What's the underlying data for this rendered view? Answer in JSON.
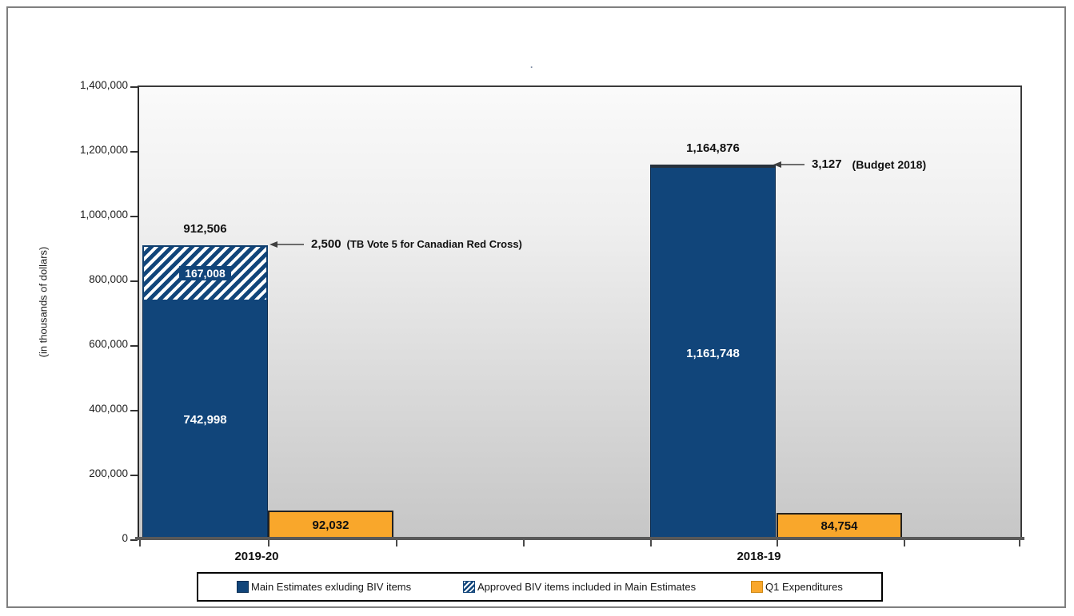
{
  "chart_data": {
    "type": "bar",
    "title": ".",
    "ylabel": "(in thousands of dollars)",
    "ylim": [
      0,
      1400000
    ],
    "y_tick_labels": [
      "1,400,000",
      "1,200,000",
      "1,000,000",
      "800,000",
      "600,000",
      "400,000",
      "200,000",
      "0"
    ],
    "gridlines": "off",
    "legend_position": "bottom",
    "categories": [
      "2019-20",
      "2018-19"
    ],
    "series": [
      {
        "name": "Main Estimates exluding BIV items",
        "color": "#11457A",
        "values": [
          742998,
          1161748
        ],
        "value_labels": [
          "742,998",
          "1,161,748"
        ]
      },
      {
        "name": "Approved BIV items included in Main Estimates",
        "color": "diagonal-stripes #11457A on white",
        "values": [
          167008,
          0
        ],
        "value_labels": [
          "167,008",
          ""
        ]
      },
      {
        "name": "Q1 Expenditures",
        "color": "#F9A72B",
        "values": [
          92032,
          84754
        ],
        "value_labels": [
          "92,032",
          "84,754"
        ]
      }
    ],
    "stack_totals": {
      "values": [
        912506,
        1164876
      ],
      "labels": [
        "912,506",
        "1,164,876"
      ]
    },
    "annotations": [
      {
        "amount": "2,500",
        "note": "(TB Vote 5 for Canadian Red Cross)",
        "target": "top of 2019-20 stacked bar"
      },
      {
        "amount": "3,127",
        "note": "(Budget 2018)",
        "target": "top of 2018-19 bar"
      }
    ],
    "colors": {
      "bar_blue": "#11457A",
      "bar_orange": "#F9A72B",
      "axis_line": "#595959",
      "plot_bg_top": "#FAFAFA",
      "plot_bg_bottom": "#C6C6C6"
    }
  }
}
